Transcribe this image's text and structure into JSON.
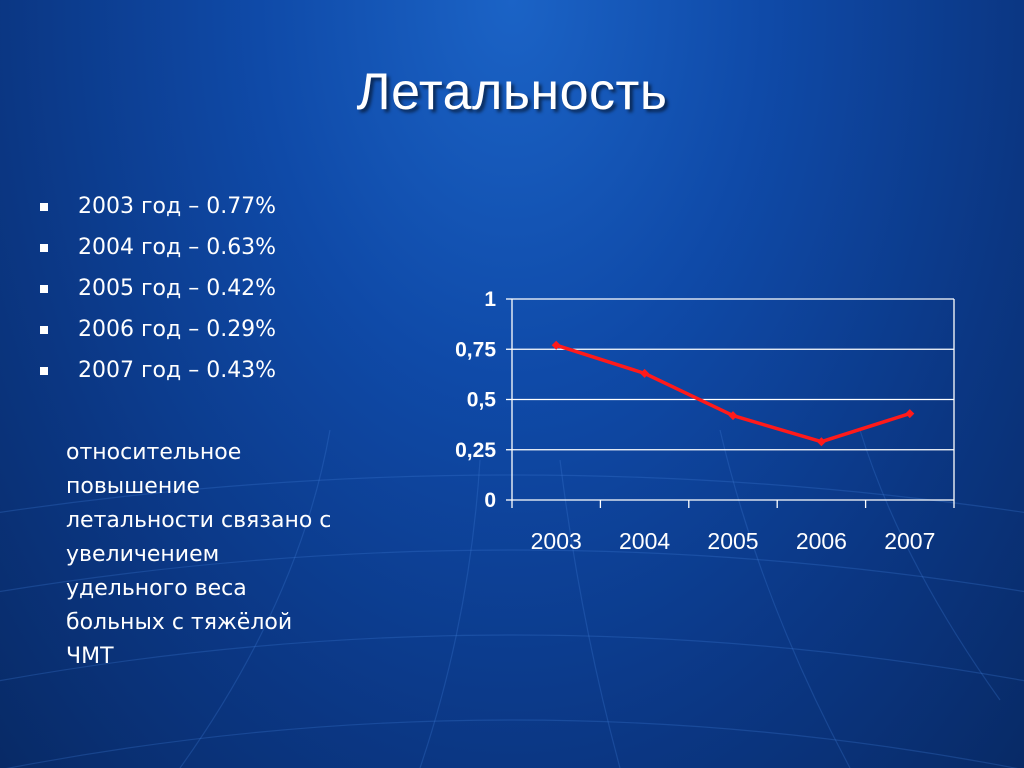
{
  "title": "Летальность",
  "bullets": [
    "2003 год – 0.77%",
    "2004 год – 0.63%",
    "2005 год – 0.42%",
    "2006 год – 0.29%",
    "2007 год – 0.43%"
  ],
  "note": "относительное\nповышение\nлетальности связано с\nувеличением\nудельного веса\nбольных с тяжёлой\nЧМТ",
  "colors": {
    "series": "#ff1a1a",
    "grid": "#ffffff",
    "text": "#ffffff"
  },
  "chart_data": {
    "type": "line",
    "categories": [
      "2003",
      "2004",
      "2005",
      "2006",
      "2007"
    ],
    "series": [
      {
        "values": [
          0.77,
          0.63,
          0.42,
          0.29,
          0.43
        ]
      }
    ],
    "ylim": [
      0,
      1
    ],
    "yticks": [
      "0",
      "0,25",
      "0,5",
      "0,75",
      "1"
    ],
    "grid": true,
    "legend": "none"
  }
}
